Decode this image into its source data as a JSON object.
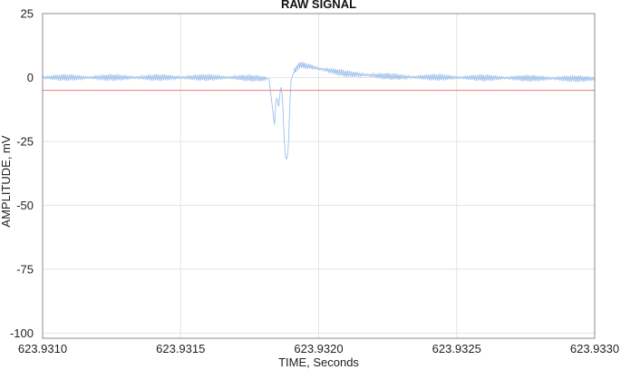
{
  "chart_data": {
    "type": "line",
    "title": "RAW SIGNAL",
    "xlabel": "TIME, Seconds",
    "ylabel": "AMPLITUDE, mV",
    "xlim": [
      623.931,
      623.933
    ],
    "ylim": [
      -102,
      25
    ],
    "x_ticks": [
      "623.9310",
      "623.9315",
      "623.9320",
      "623.9325",
      "623.9330"
    ],
    "y_ticks": [
      "25",
      "0",
      "-25",
      "-50",
      "-75",
      "-100"
    ],
    "grid": true,
    "series": [
      {
        "type": "line",
        "color": "#9ec2ec",
        "points": [
          [
            623.931,
            0.0
          ],
          [
            623.9317,
            0.0
          ],
          [
            623.93182,
            -0.5
          ],
          [
            623.931835,
            -14
          ],
          [
            623.93184,
            -18.5
          ],
          [
            623.931845,
            -9
          ],
          [
            623.93185,
            -8
          ],
          [
            623.931855,
            -12
          ],
          [
            623.93186,
            -6
          ],
          [
            623.931865,
            -3.5
          ],
          [
            623.93187,
            -10
          ],
          [
            623.931875,
            -24
          ],
          [
            623.93188,
            -31
          ],
          [
            623.931885,
            -32
          ],
          [
            623.93189,
            -28
          ],
          [
            623.931895,
            -12
          ],
          [
            623.9319,
            -1
          ],
          [
            623.93191,
            2
          ],
          [
            623.93193,
            5
          ],
          [
            623.93196,
            4.5
          ],
          [
            623.932,
            3.5
          ],
          [
            623.93205,
            2.5
          ],
          [
            623.9321,
            1.5
          ],
          [
            623.9322,
            0.8
          ],
          [
            623.9323,
            0.2
          ],
          [
            623.933,
            -0.5
          ]
        ]
      },
      {
        "type": "threshold",
        "color": "#f08a8a",
        "value": -5
      }
    ]
  }
}
